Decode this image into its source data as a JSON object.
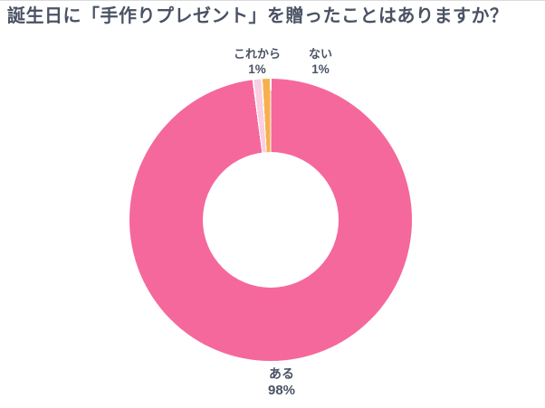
{
  "chart_data": {
    "type": "pie",
    "subtype": "donut",
    "title": "誕生日に「手作りプレゼント」を贈ったことはありますか？",
    "slices": [
      {
        "label": "ある",
        "value": 98,
        "pct": "98%",
        "color": "#f5689b"
      },
      {
        "label": "これから",
        "value": 1,
        "pct": "1%",
        "color": "#f8cfe0"
      },
      {
        "label": "ない",
        "value": 1,
        "pct": "1%",
        "color": "#f6b04e"
      }
    ],
    "start_angle_deg": 0,
    "direction": "clockwise",
    "hole_ratio": 0.48,
    "separator_color": "#ffffff",
    "separator_deg": 0.3,
    "legend": "none",
    "label_position": "outside",
    "title_color": "#4a5264",
    "label_color": "#4a5264"
  }
}
